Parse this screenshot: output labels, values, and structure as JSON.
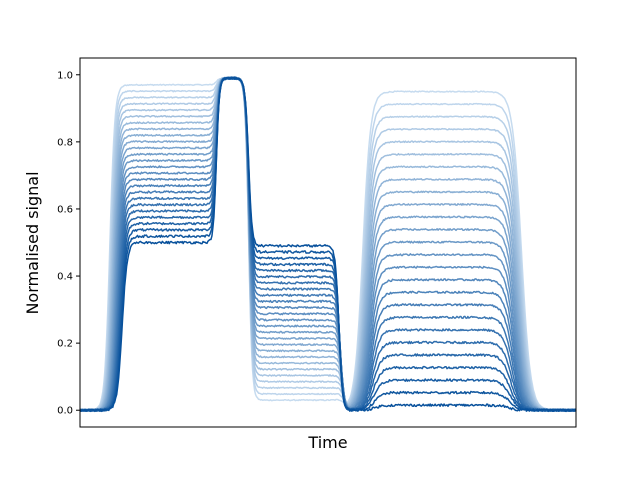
{
  "chart_data": {
    "type": "line",
    "title": "",
    "xlabel": "Time",
    "ylabel": "Normalised signal",
    "xlim": [
      0,
      100
    ],
    "ylim": [
      -0.05,
      1.05
    ],
    "y_ticks": [
      0.0,
      0.2,
      0.4,
      0.6,
      0.8,
      1.0
    ],
    "y_tick_labels": [
      "0.0",
      "0.2",
      "0.4",
      "0.6",
      "0.8",
      "1.0"
    ],
    "grid": false,
    "legend": "none",
    "color_light": "#c6dbef",
    "color_dark": "#08519c",
    "series_count": 26,
    "segment1_range": [
      0.5,
      0.97
    ],
    "segment2_range": [
      0.49,
      0.03
    ],
    "segment3_range": [
      0.015,
      0.95
    ],
    "peak_level": 0.99
  }
}
